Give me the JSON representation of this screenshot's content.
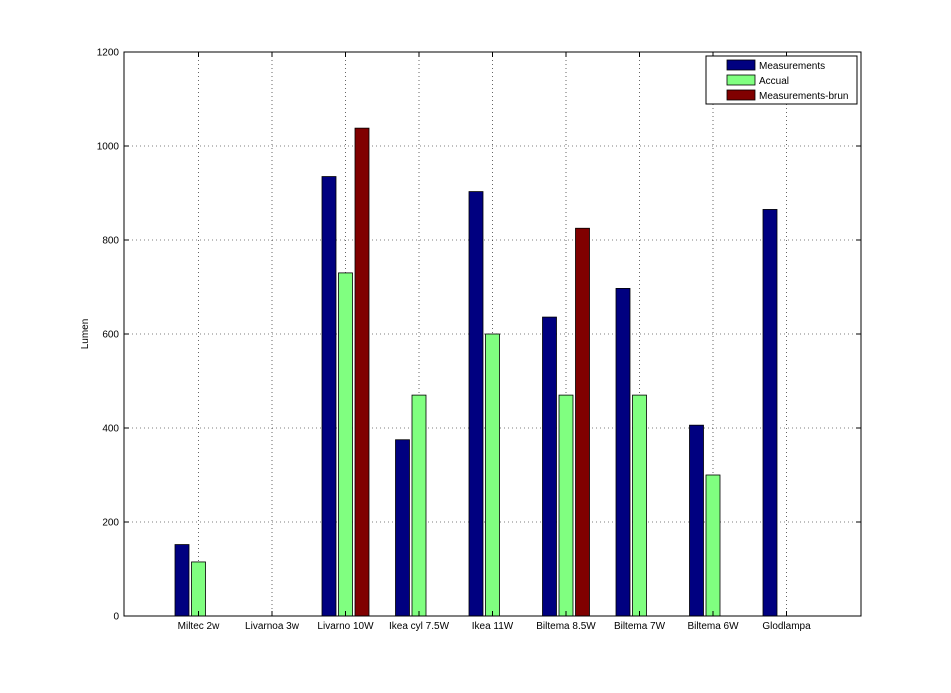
{
  "chart_data": {
    "type": "bar",
    "title": "",
    "xlabel": "",
    "ylabel": "Lumen",
    "ylim": [
      0,
      1200
    ],
    "yticks": [
      0,
      200,
      400,
      600,
      800,
      1000,
      1200
    ],
    "grid": true,
    "legend_position": "top-right",
    "categories": [
      "Miltec 2w",
      "Livarnoa 3w",
      "Livarno 10W",
      "Ikea cyl 7.5W",
      "Ikea 11W",
      "Biltema 8.5W",
      "Biltema 7W",
      "Biltema 6W",
      "Glodlampa"
    ],
    "series": [
      {
        "name": "Measurements",
        "color": "#000080",
        "values": [
          152,
          null,
          935,
          375,
          903,
          636,
          697,
          406,
          865
        ]
      },
      {
        "name": "Accual",
        "color": "#80ff80",
        "values": [
          115,
          null,
          730,
          470,
          600,
          470,
          470,
          300,
          null
        ]
      },
      {
        "name": "Measurements-brun",
        "color": "#800000",
        "values": [
          null,
          null,
          1038,
          null,
          null,
          825,
          null,
          null,
          null
        ]
      }
    ]
  }
}
